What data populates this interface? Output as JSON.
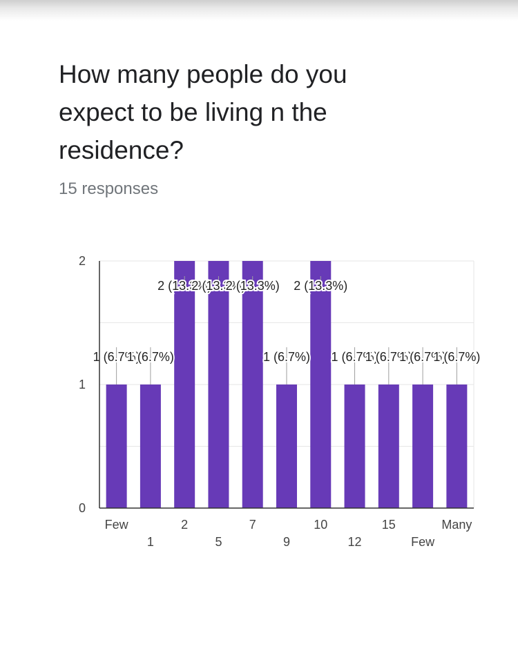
{
  "question": {
    "title": "How many people do you expect to be living n the residence?",
    "responses": "15 responses"
  },
  "colors": {
    "bar": "#673ab7",
    "grid": "#e6e6e6",
    "axis": "#333333"
  },
  "chart_data": {
    "type": "bar",
    "categories": [
      "Few",
      "1",
      "2",
      "5",
      "7",
      "9",
      "10",
      "12",
      "15",
      "Few",
      "Many"
    ],
    "values": [
      1,
      1,
      2,
      2,
      2,
      1,
      2,
      1,
      1,
      1,
      1
    ],
    "data_labels": [
      "1 (6.7%)",
      "1 (6.7%)",
      "2 (13.3%)",
      "2 (13.3%)",
      "2 (13.3%)",
      "1 (6.7%)",
      "2 (13.3%)",
      "1 (6.7%)",
      "1 (6.7%)",
      "1 (6.7%)",
      "1 (6.7%)"
    ],
    "y_ticks": [
      0,
      1,
      2
    ],
    "ylim": [
      0,
      2
    ],
    "title": "",
    "xlabel": "",
    "ylabel": "",
    "grid": true
  }
}
